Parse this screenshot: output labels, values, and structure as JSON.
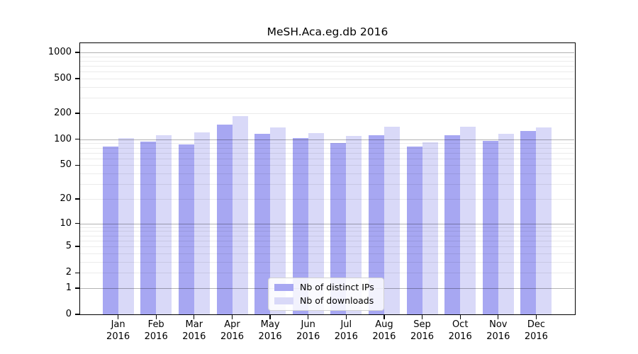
{
  "figure": {
    "title": "MeSH.Aca.eg.db 2016"
  },
  "chart_data": {
    "type": "bar",
    "title": "MeSH.Aca.eg.db 2016",
    "categories": [
      "Jan",
      "Feb",
      "Mar",
      "Apr",
      "May",
      "Jun",
      "Jul",
      "Aug",
      "Sep",
      "Oct",
      "Nov",
      "Dec"
    ],
    "category_year": "2016",
    "series": [
      {
        "name": "Nb of distinct IPs",
        "color": "#a7a7f2",
        "values": [
          83,
          94,
          87,
          149,
          115,
          103,
          91,
          112,
          82,
          112,
          97,
          126
        ]
      },
      {
        "name": "Nb of downloads",
        "color": "#d9d9f8",
        "values": [
          104,
          112,
          120,
          185,
          137,
          119,
          110,
          139,
          93,
          140,
          117,
          137
        ]
      }
    ],
    "xlabel": "",
    "ylabel": "",
    "y_axis": {
      "scale": "log1p",
      "tick_values": [
        0,
        1,
        2,
        5,
        10,
        20,
        50,
        100,
        200,
        500,
        1000
      ],
      "tick_labels": [
        "0",
        "1",
        "2",
        "5",
        "10",
        "20",
        "50",
        "100",
        "200",
        "500",
        "1000"
      ],
      "ylim": [
        0,
        1280
      ]
    },
    "grid": {
      "major_values": [
        1,
        10,
        100,
        1000
      ],
      "minor_values": [
        2,
        3,
        4,
        5,
        6,
        7,
        8,
        9,
        20,
        30,
        40,
        50,
        60,
        70,
        80,
        90,
        200,
        300,
        400,
        500,
        600,
        700,
        800,
        900
      ],
      "grid_on": true
    },
    "legend": {
      "position": "lower center",
      "entries": [
        "Nb of distinct IPs",
        "Nb of downloads"
      ]
    }
  }
}
